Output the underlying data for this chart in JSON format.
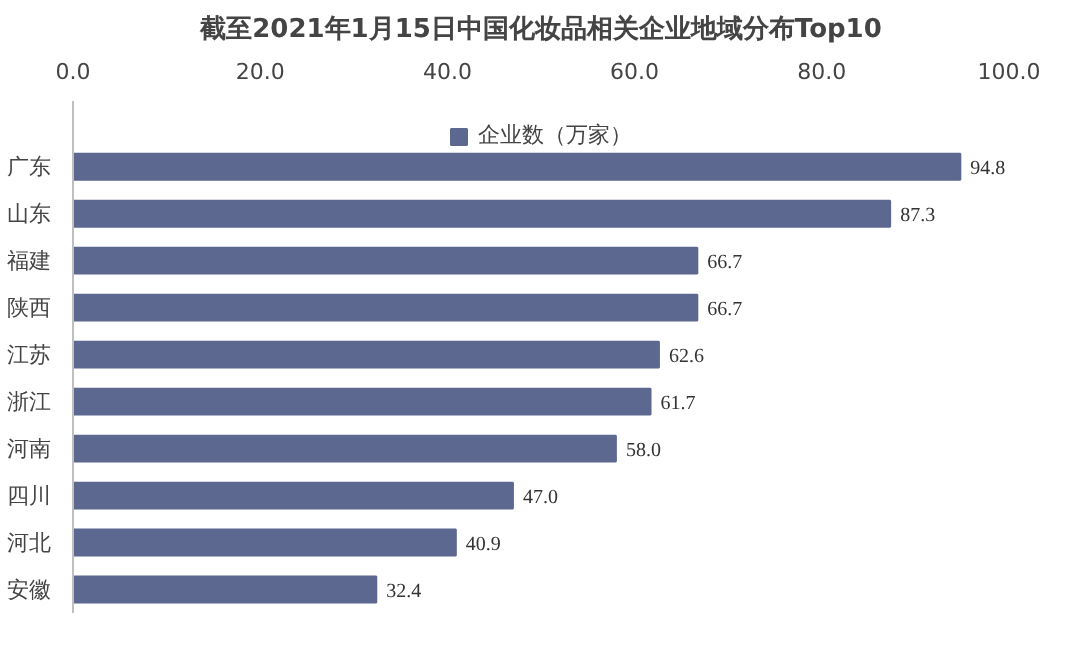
{
  "chart_data": {
    "type": "bar",
    "orientation": "horizontal",
    "title": "截至2021年1月15日中国化妆品相关企业地域分布Top10",
    "categories": [
      "广东",
      "山东",
      "福建",
      "陕西",
      "江苏",
      "浙江",
      "河南",
      "四川",
      "河北",
      "安徽"
    ],
    "series": [
      {
        "name": "企业数（万家）",
        "color": "#5d6890",
        "values": [
          94.8,
          87.3,
          66.7,
          66.7,
          62.6,
          61.7,
          58.0,
          47.0,
          40.9,
          32.4
        ]
      }
    ],
    "value_labels": [
      "94.8",
      "87.3",
      "66.7",
      "66.7",
      "62.6",
      "61.7",
      "58.0",
      "47.0",
      "40.9",
      "32.4"
    ],
    "xlim": [
      0,
      100
    ],
    "xticks": [
      {
        "value": 0,
        "label": "0.0"
      },
      {
        "value": 20,
        "label": "20.0"
      },
      {
        "value": 40,
        "label": "40.0"
      },
      {
        "value": 60,
        "label": "60.0"
      },
      {
        "value": 80,
        "label": "80.0"
      },
      {
        "value": 100,
        "label": "100.0"
      }
    ],
    "legend": "top",
    "grid": false
  }
}
